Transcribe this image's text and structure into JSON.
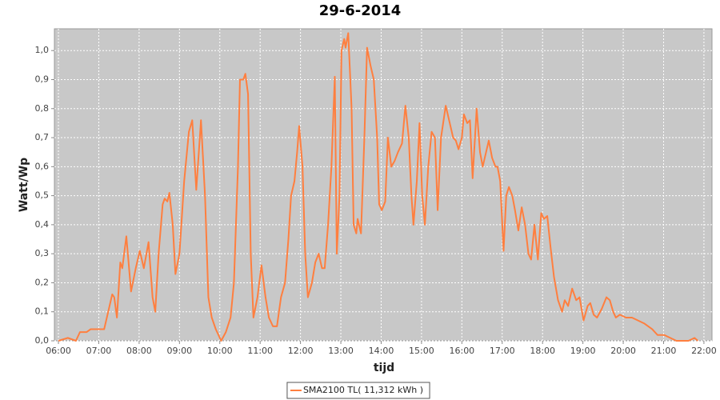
{
  "chart_data": {
    "type": "line",
    "title": "29-6-2014",
    "x_label": "tijd",
    "y_label": "Watt/Wp",
    "x": [
      "06:00",
      "06:14",
      "06:26",
      "06:32",
      "06:42",
      "06:48",
      "07:02",
      "07:08",
      "07:14",
      "07:20",
      "07:23",
      "07:27",
      "07:32",
      "07:35",
      "07:41",
      "07:48",
      "07:55",
      "08:01",
      "08:07",
      "08:14",
      "08:20",
      "08:24",
      "08:29",
      "08:35",
      "08:38",
      "08:42",
      "08:45",
      "08:50",
      "08:54",
      "09:00",
      "09:07",
      "09:14",
      "09:19",
      "09:25",
      "09:32",
      "09:38",
      "09:43",
      "09:48",
      "09:54",
      "10:02",
      "10:09",
      "10:16",
      "10:21",
      "10:27",
      "10:30",
      "10:35",
      "10:38",
      "10:42",
      "10:46",
      "10:50",
      "10:56",
      "11:02",
      "11:08",
      "11:13",
      "11:19",
      "11:25",
      "11:31",
      "11:37",
      "11:42",
      "11:46",
      "11:51",
      "11:55",
      "11:58",
      "12:03",
      "12:07",
      "12:11",
      "12:17",
      "12:22",
      "12:27",
      "12:32",
      "12:36",
      "12:41",
      "12:46",
      "12:51",
      "12:54",
      "12:58",
      "13:01",
      "13:05",
      "13:07",
      "13:11",
      "13:16",
      "13:19",
      "13:23",
      "13:25",
      "13:30",
      "13:35",
      "13:39",
      "13:44",
      "13:49",
      "13:54",
      "13:57",
      "14:01",
      "14:06",
      "14:10",
      "14:15",
      "14:20",
      "14:25",
      "14:31",
      "14:36",
      "14:41",
      "14:45",
      "14:48",
      "14:53",
      "14:57",
      "15:01",
      "15:05",
      "15:10",
      "15:15",
      "15:20",
      "15:24",
      "15:29",
      "15:36",
      "15:42",
      "15:47",
      "15:51",
      "15:55",
      "16:00",
      "16:03",
      "16:08",
      "16:12",
      "16:16",
      "16:22",
      "16:27",
      "16:31",
      "16:35",
      "16:40",
      "16:45",
      "16:50",
      "16:53",
      "16:57",
      "17:02",
      "17:06",
      "17:10",
      "17:15",
      "17:19",
      "17:24",
      "17:29",
      "17:34",
      "17:39",
      "17:43",
      "17:48",
      "17:53",
      "17:58",
      "18:02",
      "18:07",
      "18:12",
      "18:17",
      "18:23",
      "18:29",
      "18:33",
      "18:38",
      "18:44",
      "18:50",
      "18:55",
      "19:01",
      "19:07",
      "19:11",
      "19:16",
      "19:21",
      "19:28",
      "19:35",
      "19:40",
      "19:45",
      "19:49",
      "19:55",
      "20:04",
      "20:13",
      "20:22",
      "20:31",
      "20:43",
      "20:51",
      "21:01",
      "21:10",
      "21:19",
      "21:37",
      "21:46",
      "21:51"
    ],
    "series": [
      {
        "name": "SMA2100 TL( 11,312 kWh )",
        "color": "#ff7f3f",
        "values": [
          0.0,
          0.01,
          0.0,
          0.03,
          0.03,
          0.04,
          0.04,
          0.04,
          0.1,
          0.16,
          0.15,
          0.08,
          0.27,
          0.25,
          0.36,
          0.17,
          0.25,
          0.31,
          0.25,
          0.34,
          0.15,
          0.1,
          0.3,
          0.47,
          0.49,
          0.48,
          0.51,
          0.4,
          0.23,
          0.3,
          0.55,
          0.72,
          0.76,
          0.52,
          0.76,
          0.5,
          0.15,
          0.08,
          0.04,
          0.0,
          0.03,
          0.08,
          0.2,
          0.6,
          0.9,
          0.9,
          0.92,
          0.85,
          0.3,
          0.08,
          0.15,
          0.26,
          0.15,
          0.08,
          0.05,
          0.05,
          0.15,
          0.2,
          0.35,
          0.5,
          0.55,
          0.65,
          0.74,
          0.6,
          0.3,
          0.15,
          0.2,
          0.27,
          0.3,
          0.25,
          0.25,
          0.4,
          0.6,
          0.91,
          0.3,
          0.5,
          1.0,
          1.04,
          1.01,
          1.06,
          0.8,
          0.4,
          0.37,
          0.42,
          0.37,
          0.7,
          1.01,
          0.95,
          0.9,
          0.7,
          0.47,
          0.45,
          0.48,
          0.7,
          0.6,
          0.62,
          0.65,
          0.68,
          0.81,
          0.7,
          0.5,
          0.4,
          0.55,
          0.75,
          0.5,
          0.4,
          0.6,
          0.72,
          0.7,
          0.45,
          0.7,
          0.81,
          0.75,
          0.7,
          0.69,
          0.66,
          0.7,
          0.78,
          0.75,
          0.76,
          0.56,
          0.8,
          0.65,
          0.6,
          0.64,
          0.69,
          0.63,
          0.6,
          0.6,
          0.55,
          0.31,
          0.5,
          0.53,
          0.5,
          0.45,
          0.38,
          0.46,
          0.4,
          0.3,
          0.28,
          0.4,
          0.28,
          0.44,
          0.42,
          0.43,
          0.32,
          0.22,
          0.14,
          0.1,
          0.14,
          0.12,
          0.18,
          0.14,
          0.15,
          0.07,
          0.12,
          0.13,
          0.09,
          0.08,
          0.11,
          0.15,
          0.14,
          0.1,
          0.08,
          0.09,
          0.08,
          0.08,
          0.07,
          0.06,
          0.04,
          0.02,
          0.02,
          0.01,
          0.0,
          0.0,
          0.01,
          0.0
        ]
      }
    ],
    "xlim": [
      "05:54",
      "22:12"
    ],
    "xticks": [
      "06:00",
      "07:00",
      "08:00",
      "09:00",
      "10:00",
      "11:00",
      "12:00",
      "13:00",
      "14:00",
      "15:00",
      "16:00",
      "17:00",
      "18:00",
      "19:00",
      "20:00",
      "21:00",
      "22:00"
    ],
    "ylim": [
      0,
      1.075
    ],
    "yticks": [
      {
        "value": 0,
        "label": "0,0"
      },
      {
        "value": 0.1,
        "label": "0,1"
      },
      {
        "value": 0.2,
        "label": "0,2"
      },
      {
        "value": 0.3,
        "label": "0,3"
      },
      {
        "value": 0.4,
        "label": "0,4"
      },
      {
        "value": 0.5,
        "label": "0,5"
      },
      {
        "value": 0.6,
        "label": "0,6"
      },
      {
        "value": 0.7,
        "label": "0,7"
      },
      {
        "value": 0.8,
        "label": "0,8"
      },
      {
        "value": 0.9,
        "label": "0,9"
      },
      {
        "value": 1.0,
        "label": "1,0"
      }
    ],
    "grid": true,
    "legend": "bottom"
  }
}
